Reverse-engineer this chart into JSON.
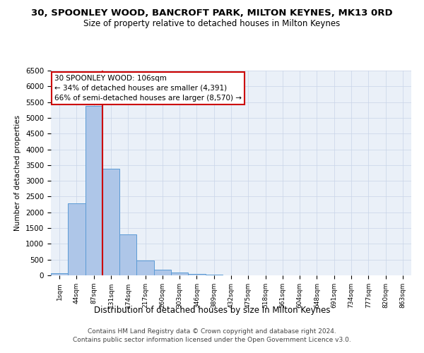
{
  "title": "30, SPOONLEY WOOD, BANCROFT PARK, MILTON KEYNES, MK13 0RD",
  "subtitle": "Size of property relative to detached houses in Milton Keynes",
  "xlabel": "Distribution of detached houses by size in Milton Keynes",
  "ylabel": "Number of detached properties",
  "footer_line1": "Contains HM Land Registry data © Crown copyright and database right 2024.",
  "footer_line2": "Contains public sector information licensed under the Open Government Licence v3.0.",
  "bar_labels": [
    "1sqm",
    "44sqm",
    "87sqm",
    "131sqm",
    "174sqm",
    "217sqm",
    "260sqm",
    "303sqm",
    "346sqm",
    "389sqm",
    "432sqm",
    "475sqm",
    "518sqm",
    "561sqm",
    "604sqm",
    "648sqm",
    "691sqm",
    "734sqm",
    "777sqm",
    "820sqm",
    "863sqm"
  ],
  "bar_values": [
    75,
    2280,
    5380,
    3380,
    1300,
    480,
    170,
    90,
    55,
    25,
    10,
    5,
    3,
    2,
    1,
    1,
    0,
    0,
    0,
    0,
    0
  ],
  "bar_color": "#aec6e8",
  "bar_edge_color": "#5b9bd5",
  "property_line_x": 2.5,
  "annotation_title": "30 SPOONLEY WOOD: 106sqm",
  "annotation_line1": "← 34% of detached houses are smaller (4,391)",
  "annotation_line2": "66% of semi-detached houses are larger (8,570) →",
  "annotation_box_color": "#ffffff",
  "annotation_box_edge": "#cc0000",
  "property_line_color": "#cc0000",
  "ylim": [
    0,
    6500
  ],
  "yticks": [
    0,
    500,
    1000,
    1500,
    2000,
    2500,
    3000,
    3500,
    4000,
    4500,
    5000,
    5500,
    6000,
    6500
  ],
  "grid_color": "#c8d4e8",
  "bg_color": "#eaf0f8"
}
